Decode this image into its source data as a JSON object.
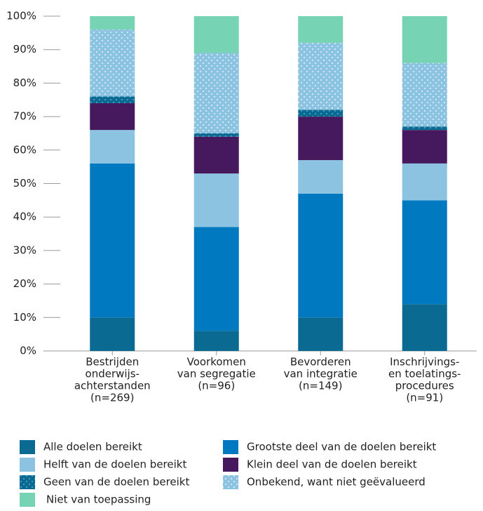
{
  "chart_data": {
    "type": "stacked_bar",
    "categories": [
      [
        "Bestrijden",
        "onderwijs-",
        "achterstanden",
        "(n=269)"
      ],
      [
        "Voorkomen",
        "van segregatie",
        "(n=96)"
      ],
      [
        "Bevorderen",
        "van integratie",
        "(n=149)"
      ],
      [
        "Inschrijvings-",
        "en toelatings-",
        "procedures",
        "(n=91)"
      ]
    ],
    "series": [
      {
        "name": "Alle doelen bereikt",
        "color": "#0b6a91",
        "values": [
          10,
          6,
          10,
          14
        ]
      },
      {
        "name": "Grootste deel van de doelen bereikt",
        "color": "#0079c1",
        "values": [
          46,
          31,
          37,
          31
        ]
      },
      {
        "name": "Helft van de doelen bereikt",
        "color": "#8cc3e0",
        "values": [
          10,
          16,
          10,
          11
        ]
      },
      {
        "name": "Klein deel van de doelen bereikt",
        "color": "#46185e",
        "values": [
          8,
          11,
          13,
          10
        ]
      },
      {
        "name": "Geen van de doelen bereikt",
        "color": "#0b6a91",
        "pattern": "dots",
        "values": [
          2,
          1,
          2,
          1
        ]
      },
      {
        "name": "Onbekend, want niet geëvalueerd",
        "color": "#8cc3e0",
        "pattern": "dots",
        "values": [
          20,
          24,
          20,
          19
        ]
      },
      {
        "name": "Niet van toepassing",
        "color": "#76d3b4",
        "values": [
          4,
          11,
          8,
          14
        ]
      }
    ],
    "ylim": [
      0,
      100
    ],
    "yticks": [
      {
        "value": 0,
        "label": "0%"
      },
      {
        "value": 10,
        "label": "10%"
      },
      {
        "value": 20,
        "label": "20%"
      },
      {
        "value": 30,
        "label": "30%"
      },
      {
        "value": 40,
        "label": "40%"
      },
      {
        "value": 50,
        "label": "50%"
      },
      {
        "value": 60,
        "label": "60%"
      },
      {
        "value": 70,
        "label": "70%"
      },
      {
        "value": 80,
        "label": "80%"
      },
      {
        "value": 90,
        "label": "90%"
      },
      {
        "value": 100,
        "label": "100%"
      }
    ]
  }
}
